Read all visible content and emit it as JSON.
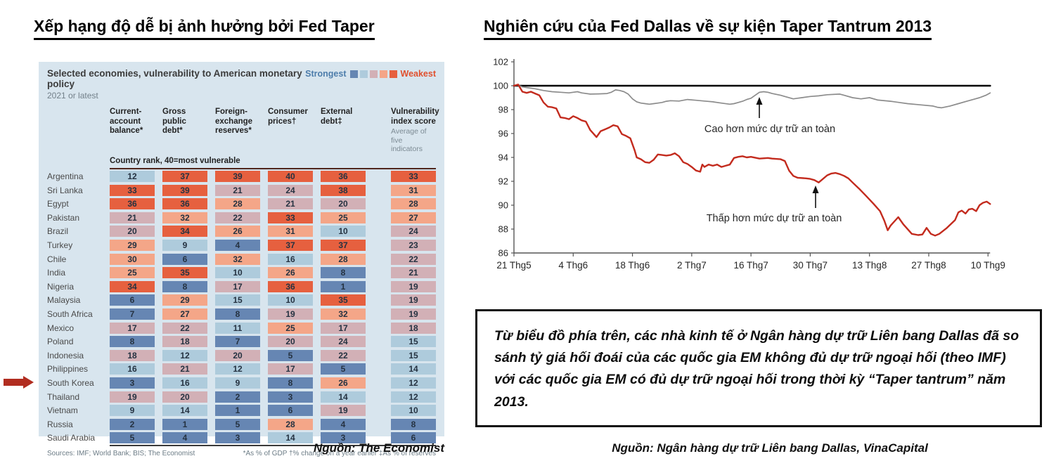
{
  "left_panel": {
    "title": "Xếp hạng độ dễ bị ảnh hưởng bởi Fed Taper",
    "caption": "Nguồn: The Economist",
    "highlight_country": "Vietnam",
    "table": {
      "heading": "Selected economies, vulnerability to American monetary policy",
      "subheading": "2021 or latest",
      "legend": {
        "strongest_label": "Strongest",
        "weakest_label": "Weakest",
        "colors": [
          "#6686b3",
          "#aecbdc",
          "#d2b0b6",
          "#f4a688",
          "#e6603f"
        ]
      },
      "columns": [
        "Current-account balance*",
        "Gross public debt*",
        "Foreign-exchange reserves*",
        "Consumer prices†",
        "External debt‡",
        "Vulnerability index score"
      ],
      "column_note": "Average of five indicators",
      "rank_note": "Country rank, 40=most vulnerable",
      "rows": [
        {
          "country": "Argentina",
          "values": [
            12,
            37,
            39,
            40,
            36,
            33
          ]
        },
        {
          "country": "Sri Lanka",
          "values": [
            33,
            39,
            21,
            24,
            38,
            31
          ]
        },
        {
          "country": "Egypt",
          "values": [
            36,
            36,
            28,
            21,
            20,
            28
          ]
        },
        {
          "country": "Pakistan",
          "values": [
            21,
            32,
            22,
            33,
            25,
            27
          ]
        },
        {
          "country": "Brazil",
          "values": [
            20,
            34,
            26,
            31,
            10,
            24
          ]
        },
        {
          "country": "Turkey",
          "values": [
            29,
            9,
            4,
            37,
            37,
            23
          ]
        },
        {
          "country": "Chile",
          "values": [
            30,
            6,
            32,
            16,
            28,
            22
          ]
        },
        {
          "country": "India",
          "values": [
            25,
            35,
            10,
            26,
            8,
            21
          ]
        },
        {
          "country": "Nigeria",
          "values": [
            34,
            8,
            17,
            36,
            1,
            19
          ]
        },
        {
          "country": "Malaysia",
          "values": [
            6,
            29,
            15,
            10,
            35,
            19
          ]
        },
        {
          "country": "South Africa",
          "values": [
            7,
            27,
            8,
            19,
            32,
            19
          ]
        },
        {
          "country": "Mexico",
          "values": [
            17,
            22,
            11,
            25,
            17,
            18
          ]
        },
        {
          "country": "Poland",
          "values": [
            8,
            18,
            7,
            20,
            24,
            15
          ]
        },
        {
          "country": "Indonesia",
          "values": [
            18,
            12,
            20,
            5,
            22,
            15
          ]
        },
        {
          "country": "Philippines",
          "values": [
            16,
            21,
            12,
            17,
            5,
            14
          ]
        },
        {
          "country": "South Korea",
          "values": [
            3,
            16,
            9,
            8,
            26,
            12
          ]
        },
        {
          "country": "Thailand",
          "values": [
            19,
            20,
            2,
            3,
            14,
            12
          ]
        },
        {
          "country": "Vietnam",
          "values": [
            9,
            14,
            1,
            6,
            19,
            10
          ]
        },
        {
          "country": "Russia",
          "values": [
            2,
            1,
            5,
            28,
            4,
            8
          ]
        },
        {
          "country": "Saudi Arabia",
          "values": [
            5,
            4,
            3,
            14,
            3,
            6
          ]
        }
      ],
      "sources": "Sources: IMF; World Bank; BIS; The Economist",
      "footnotes": "*As % of GDP   †% change on a year earlier   ‡As % of reserves"
    }
  },
  "right_panel": {
    "title": "Nghiên cứu của Fed Dallas về sự kiện Taper Tantrum 2013",
    "note_box": "Từ biểu đồ phía trên, các nhà kinh tế ở Ngân hàng dự trữ Liên bang Dallas đã so sánh tỷ giá hối đoái của các quốc gia EM không đủ dự trữ ngoại hối (theo IMF) với các quốc gia EM có đủ dự trữ ngoại hối trong thời kỳ “Taper tantrum” năm 2013.",
    "caption": "Nguồn: Ngân hàng dự trữ Liên bang Dallas, VinaCapital",
    "chart_data": {
      "type": "line",
      "ylim": [
        86,
        102
      ],
      "y_ticks": [
        102,
        100,
        98,
        96,
        94,
        92,
        90,
        88,
        86
      ],
      "x_tick_labels": [
        "21 Thg5",
        "4 Thg6",
        "18 Thg6",
        "2 Thg7",
        "16 Thg7",
        "30 Thg7",
        "13 Thg8",
        "27 Thg8",
        "10 Thg9"
      ],
      "x_tick_days": [
        0,
        14,
        28,
        42,
        56,
        70,
        84,
        98,
        112
      ],
      "x_unit": "days since 21 Thg5 2013, index 21 Thg5 = 100",
      "grid": false,
      "legend_position": "none",
      "annotations": [
        {
          "text": "Cao hơn mức dự trữ an toàn",
          "points_to": "gray-series"
        },
        {
          "text": "Thấp hơn mức dự trữ an toàn",
          "points_to": "red-series"
        }
      ],
      "series": [
        {
          "name": "index-baseline-100",
          "color": "#000000",
          "width": 2.6,
          "points": [
            [
              0,
              100
            ],
            [
              112.5,
              100
            ]
          ]
        },
        {
          "name": "Cao hơn mức dự trữ an toàn",
          "color": "#8c8c8c",
          "width": 1.7,
          "points": [
            [
              0,
              100
            ],
            [
              1,
              100.05
            ],
            [
              2,
              99.9
            ],
            [
              3,
              99.85
            ],
            [
              5,
              99.75
            ],
            [
              7,
              99.6
            ],
            [
              9,
              99.5
            ],
            [
              11,
              99.45
            ],
            [
              13,
              99.4
            ],
            [
              14,
              99.45
            ],
            [
              15,
              99.5
            ],
            [
              16,
              99.4
            ],
            [
              18,
              99.3
            ],
            [
              20,
              99.32
            ],
            [
              22,
              99.35
            ],
            [
              23,
              99.45
            ],
            [
              24,
              99.65
            ],
            [
              25,
              99.6
            ],
            [
              26,
              99.5
            ],
            [
              27,
              99.3
            ],
            [
              28,
              98.9
            ],
            [
              29,
              98.65
            ],
            [
              30,
              98.55
            ],
            [
              31,
              98.5
            ],
            [
              32,
              98.45
            ],
            [
              33,
              98.5
            ],
            [
              34,
              98.55
            ],
            [
              35,
              98.6
            ],
            [
              36,
              98.7
            ],
            [
              37,
              98.75
            ],
            [
              39,
              98.72
            ],
            [
              41,
              98.85
            ],
            [
              43,
              98.78
            ],
            [
              45,
              98.72
            ],
            [
              47,
              98.65
            ],
            [
              49,
              98.55
            ],
            [
              51,
              98.45
            ],
            [
              52,
              98.5
            ],
            [
              53,
              98.6
            ],
            [
              54,
              98.7
            ],
            [
              55,
              98.85
            ],
            [
              56,
              98.95
            ],
            [
              57,
              99.2
            ],
            [
              58,
              99.45
            ],
            [
              59,
              99.5
            ],
            [
              60,
              99.45
            ],
            [
              61,
              99.35
            ],
            [
              63,
              99.2
            ],
            [
              64,
              99.1
            ],
            [
              66,
              98.9
            ],
            [
              67,
              98.95
            ],
            [
              68,
              99.0
            ],
            [
              70,
              99.1
            ],
            [
              72,
              99.15
            ],
            [
              74,
              99.25
            ],
            [
              77,
              99.3
            ],
            [
              78,
              99.2
            ],
            [
              80,
              99.0
            ],
            [
              82,
              98.9
            ],
            [
              84,
              99.0
            ],
            [
              86,
              98.8
            ],
            [
              89,
              98.7
            ],
            [
              91,
              98.6
            ],
            [
              93,
              98.5
            ],
            [
              96,
              98.4
            ],
            [
              99,
              98.3
            ],
            [
              100,
              98.2
            ],
            [
              101,
              98.15
            ],
            [
              103,
              98.3
            ],
            [
              105,
              98.5
            ],
            [
              107,
              98.7
            ],
            [
              109,
              98.9
            ],
            [
              110,
              99.0
            ],
            [
              111.5,
              99.2
            ],
            [
              112.5,
              99.4
            ]
          ]
        },
        {
          "name": "Thấp hơn mức dự trữ an toàn",
          "color": "#c32b1e",
          "width": 2.4,
          "points": [
            [
              0,
              100
            ],
            [
              1,
              100.1
            ],
            [
              2,
              99.5
            ],
            [
              3,
              99.4
            ],
            [
              4,
              99.5
            ],
            [
              5,
              99.35
            ],
            [
              6,
              99.2
            ],
            [
              7,
              98.6
            ],
            [
              8,
              98.25
            ],
            [
              9,
              98.2
            ],
            [
              10,
              98.1
            ],
            [
              11,
              97.35
            ],
            [
              12,
              97.3
            ],
            [
              13,
              97.2
            ],
            [
              14,
              97.45
            ],
            [
              15,
              97.3
            ],
            [
              16,
              97.1
            ],
            [
              17,
              97.0
            ],
            [
              18,
              96.3
            ],
            [
              19,
              95.9
            ],
            [
              19.5,
              95.7
            ],
            [
              20.5,
              96.2
            ],
            [
              21.5,
              96.35
            ],
            [
              22.5,
              96.5
            ],
            [
              23.5,
              96.7
            ],
            [
              24.5,
              96.6
            ],
            [
              25.5,
              95.95
            ],
            [
              26.5,
              95.8
            ],
            [
              27.5,
              95.6
            ],
            [
              28.5,
              94.6
            ],
            [
              29,
              94.0
            ],
            [
              30,
              93.85
            ],
            [
              31,
              93.6
            ],
            [
              32,
              93.55
            ],
            [
              33,
              93.8
            ],
            [
              34,
              94.25
            ],
            [
              35,
              94.2
            ],
            [
              36,
              94.15
            ],
            [
              37,
              94.2
            ],
            [
              38,
              94.35
            ],
            [
              39,
              94.1
            ],
            [
              40,
              93.6
            ],
            [
              41,
              93.45
            ],
            [
              42,
              93.2
            ],
            [
              43,
              92.9
            ],
            [
              44,
              92.8
            ],
            [
              44.5,
              93.4
            ],
            [
              45,
              93.2
            ],
            [
              46,
              93.4
            ],
            [
              47,
              93.3
            ],
            [
              48,
              93.4
            ],
            [
              49,
              93.2
            ],
            [
              50,
              93.3
            ],
            [
              51,
              93.4
            ],
            [
              52,
              93.95
            ],
            [
              53,
              94.05
            ],
            [
              54,
              94.1
            ],
            [
              55,
              94.0
            ],
            [
              56,
              94.05
            ],
            [
              58,
              93.9
            ],
            [
              60,
              93.95
            ],
            [
              61,
              93.9
            ],
            [
              63,
              93.85
            ],
            [
              64,
              93.7
            ],
            [
              65,
              92.9
            ],
            [
              66,
              92.45
            ],
            [
              67,
              92.3
            ],
            [
              69,
              92.25
            ],
            [
              70,
              92.2
            ],
            [
              71,
              92.1
            ],
            [
              72,
              91.9
            ],
            [
              73,
              92.2
            ],
            [
              74,
              92.5
            ],
            [
              75,
              92.65
            ],
            [
              76,
              92.7
            ],
            [
              77,
              92.6
            ],
            [
              78,
              92.45
            ],
            [
              79,
              92.25
            ],
            [
              80,
              91.9
            ],
            [
              81.5,
              91.4
            ],
            [
              83,
              90.85
            ],
            [
              85,
              90.1
            ],
            [
              86.5,
              89.5
            ],
            [
              87.5,
              88.7
            ],
            [
              88.3,
              87.9
            ],
            [
              89,
              88.3
            ],
            [
              90.8,
              89.0
            ],
            [
              92,
              88.4
            ],
            [
              94,
              87.6
            ],
            [
              95.5,
              87.5
            ],
            [
              96.5,
              87.55
            ],
            [
              97.5,
              88.1
            ],
            [
              98.5,
              87.6
            ],
            [
              99.5,
              87.45
            ],
            [
              100.5,
              87.6
            ],
            [
              102.3,
              88.1
            ],
            [
              104.2,
              88.75
            ],
            [
              105,
              89.4
            ],
            [
              105.8,
              89.55
            ],
            [
              106.7,
              89.3
            ],
            [
              107.5,
              89.65
            ],
            [
              108.3,
              89.7
            ],
            [
              109.2,
              89.5
            ],
            [
              110,
              90.0
            ],
            [
              110.8,
              90.2
            ],
            [
              111.7,
              90.3
            ],
            [
              112.5,
              90.1
            ]
          ]
        }
      ]
    }
  }
}
